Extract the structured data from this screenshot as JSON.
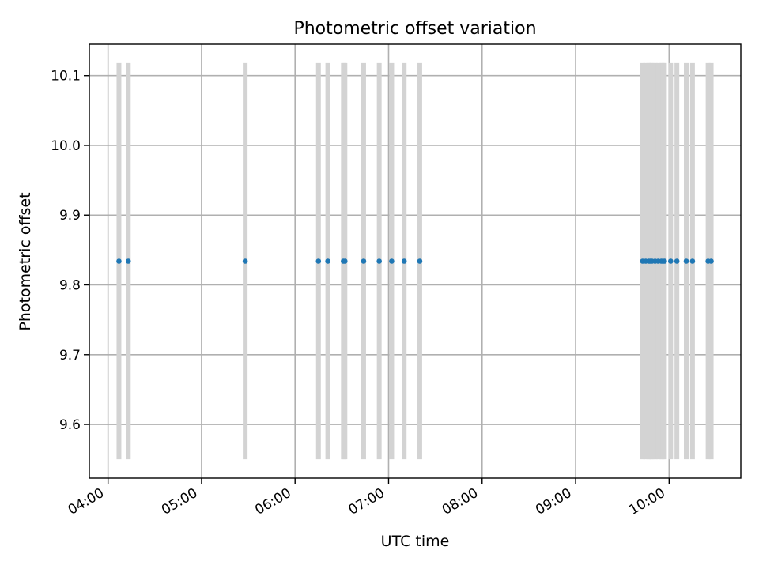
{
  "chart_data": {
    "type": "scatter",
    "title": "Photometric offset variation",
    "xlabel": "UTC time",
    "ylabel": "Photometric offset",
    "xlim": [
      "03:48",
      "10:46"
    ],
    "ylim": [
      9.523,
      10.145
    ],
    "x_ticks": [
      "04:00",
      "05:00",
      "06:00",
      "07:00",
      "08:00",
      "09:00",
      "10:00"
    ],
    "y_ticks": [
      "9.6",
      "9.7",
      "9.8",
      "9.9",
      "10.0",
      "10.1"
    ],
    "grid": true,
    "band_range": [
      9.55,
      10.118
    ],
    "points": {
      "x": [
        "04:07",
        "04:13",
        "05:28",
        "06:15",
        "06:21",
        "06:31",
        "06:32",
        "06:44",
        "06:54",
        "07:02",
        "07:10",
        "07:20",
        "09:43",
        "09:45",
        "09:47",
        "09:48",
        "09:49",
        "09:51",
        "09:53",
        "09:55",
        "09:56",
        "09:57",
        "10:01",
        "10:05",
        "10:11",
        "10:15",
        "10:25",
        "10:27"
      ],
      "y": [
        9.834,
        9.834,
        9.834,
        9.834,
        9.834,
        9.834,
        9.834,
        9.834,
        9.834,
        9.834,
        9.834,
        9.834,
        9.834,
        9.834,
        9.834,
        9.834,
        9.834,
        9.834,
        9.834,
        9.834,
        9.834,
        9.834,
        9.834,
        9.834,
        9.834,
        9.834,
        9.834,
        9.834
      ]
    },
    "colors": {
      "points": "#1f77b4",
      "bands": "#d3d3d3",
      "grid": "#b0b0b0"
    }
  }
}
